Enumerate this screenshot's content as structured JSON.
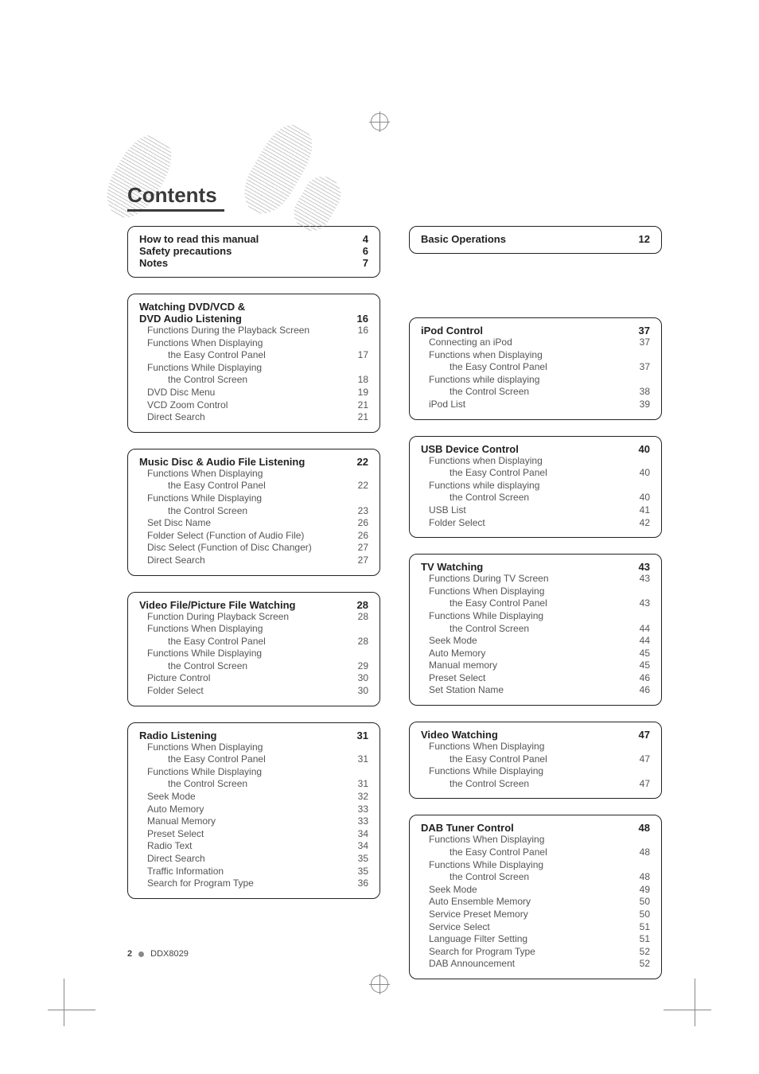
{
  "title": "Contents",
  "footer": {
    "page_number": "2",
    "model": "DDX8029"
  },
  "left_column": [
    {
      "rows": [
        {
          "type": "title",
          "label": "How to read this manual",
          "page": "4"
        },
        {
          "type": "title",
          "label": "Safety precautions",
          "page": "6"
        },
        {
          "type": "title",
          "label": "Notes",
          "page": "7"
        }
      ]
    },
    {
      "rows": [
        {
          "type": "title",
          "label": "Watching DVD/VCD &",
          "page": ""
        },
        {
          "type": "subheading",
          "label": "DVD Audio Listening",
          "page": "16"
        },
        {
          "type": "item",
          "label": "Functions During the Playback Screen",
          "page": "16"
        },
        {
          "type": "item",
          "label": "Functions When Displaying",
          "page": ""
        },
        {
          "type": "item2",
          "label": "the Easy Control Panel",
          "page": "17"
        },
        {
          "type": "item",
          "label": "Functions While Displaying",
          "page": ""
        },
        {
          "type": "item2",
          "label": "the Control Screen",
          "page": "18"
        },
        {
          "type": "item",
          "label": "DVD Disc Menu",
          "page": "19"
        },
        {
          "type": "item",
          "label": "VCD Zoom Control",
          "page": "21"
        },
        {
          "type": "item",
          "label": "Direct Search",
          "page": "21"
        }
      ]
    },
    {
      "rows": [
        {
          "type": "title",
          "label": "Music Disc & Audio File Listening",
          "page": "22"
        },
        {
          "type": "item",
          "label": "Functions When Displaying",
          "page": ""
        },
        {
          "type": "item2",
          "label": "the Easy Control Panel",
          "page": "22"
        },
        {
          "type": "item",
          "label": "Functions While Displaying",
          "page": ""
        },
        {
          "type": "item2",
          "label": "the Control Screen",
          "page": "23"
        },
        {
          "type": "item",
          "label": "Set Disc Name",
          "page": "26"
        },
        {
          "type": "item",
          "label": "Folder Select (Function of Audio File)",
          "page": "26"
        },
        {
          "type": "item",
          "label": "Disc Select (Function of Disc Changer)",
          "page": "27"
        },
        {
          "type": "item",
          "label": "Direct Search",
          "page": "27"
        }
      ]
    },
    {
      "rows": [
        {
          "type": "title",
          "label": "Video File/Picture File Watching",
          "page": "28"
        },
        {
          "type": "item",
          "label": "Function During Playback Screen",
          "page": "28"
        },
        {
          "type": "item",
          "label": "Functions When Displaying",
          "page": ""
        },
        {
          "type": "item2",
          "label": "the Easy Control Panel",
          "page": "28"
        },
        {
          "type": "item",
          "label": "Functions While Displaying",
          "page": ""
        },
        {
          "type": "item2",
          "label": "the Control Screen",
          "page": "29"
        },
        {
          "type": "item",
          "label": "Picture Control",
          "page": "30"
        },
        {
          "type": "item",
          "label": "Folder Select",
          "page": "30"
        }
      ]
    },
    {
      "rows": [
        {
          "type": "title",
          "label": "Radio Listening",
          "page": "31"
        },
        {
          "type": "item",
          "label": "Functions When Displaying",
          "page": ""
        },
        {
          "type": "item2",
          "label": "the Easy Control Panel",
          "page": "31"
        },
        {
          "type": "item",
          "label": "Functions While Displaying",
          "page": ""
        },
        {
          "type": "item2",
          "label": "the Control Screen",
          "page": "31"
        },
        {
          "type": "item",
          "label": "Seek Mode",
          "page": "32"
        },
        {
          "type": "item",
          "label": "Auto Memory",
          "page": "33"
        },
        {
          "type": "item",
          "label": "Manual Memory",
          "page": "33"
        },
        {
          "type": "item",
          "label": "Preset Select",
          "page": "34"
        },
        {
          "type": "item",
          "label": "Radio Text",
          "page": "34"
        },
        {
          "type": "item",
          "label": "Direct Search",
          "page": "35"
        },
        {
          "type": "item",
          "label": "Traffic Information",
          "page": "35"
        },
        {
          "type": "item",
          "label": "Search for Program Type",
          "page": "36"
        }
      ]
    }
  ],
  "right_column": [
    {
      "rows": [
        {
          "type": "title",
          "label": "Basic Operations",
          "page": "12"
        }
      ]
    },
    {
      "spacer": true
    },
    {
      "rows": [
        {
          "type": "title",
          "label": "iPod Control",
          "page": "37"
        },
        {
          "type": "item",
          "label": "Connecting an iPod",
          "page": "37"
        },
        {
          "type": "item",
          "label": "Functions when Displaying",
          "page": ""
        },
        {
          "type": "item2",
          "label": "the Easy Control Panel",
          "page": "37"
        },
        {
          "type": "item",
          "label": "Functions while displaying",
          "page": ""
        },
        {
          "type": "item2",
          "label": "the Control Screen",
          "page": "38"
        },
        {
          "type": "item",
          "label": "iPod List",
          "page": "39"
        }
      ]
    },
    {
      "rows": [
        {
          "type": "title",
          "label": "USB Device Control",
          "page": "40"
        },
        {
          "type": "item",
          "label": "Functions when Displaying",
          "page": ""
        },
        {
          "type": "item2",
          "label": "the Easy Control Panel",
          "page": "40"
        },
        {
          "type": "item",
          "label": "Functions while displaying",
          "page": ""
        },
        {
          "type": "item2",
          "label": "the Control Screen",
          "page": "40"
        },
        {
          "type": "item",
          "label": "USB List",
          "page": "41"
        },
        {
          "type": "item",
          "label": "Folder Select",
          "page": "42"
        }
      ]
    },
    {
      "rows": [
        {
          "type": "title",
          "label": "TV Watching",
          "page": "43"
        },
        {
          "type": "item",
          "label": "Functions During TV Screen",
          "page": "43"
        },
        {
          "type": "item",
          "label": "Functions When Displaying",
          "page": ""
        },
        {
          "type": "item2",
          "label": "the Easy Control Panel",
          "page": "43"
        },
        {
          "type": "item",
          "label": "Functions While Displaying",
          "page": ""
        },
        {
          "type": "item2",
          "label": "the Control Screen",
          "page": "44"
        },
        {
          "type": "item",
          "label": "Seek Mode",
          "page": "44"
        },
        {
          "type": "item",
          "label": "Auto Memory",
          "page": "45"
        },
        {
          "type": "item",
          "label": "Manual memory",
          "page": "45"
        },
        {
          "type": "item",
          "label": "Preset Select",
          "page": "46"
        },
        {
          "type": "item",
          "label": "Set Station Name",
          "page": "46"
        }
      ]
    },
    {
      "rows": [
        {
          "type": "title",
          "label": "Video Watching",
          "page": "47"
        },
        {
          "type": "item",
          "label": "Functions When Displaying",
          "page": ""
        },
        {
          "type": "item2",
          "label": "the Easy Control Panel",
          "page": "47"
        },
        {
          "type": "item",
          "label": "Functions While Displaying",
          "page": ""
        },
        {
          "type": "item2",
          "label": "the Control Screen",
          "page": "47"
        }
      ]
    },
    {
      "rows": [
        {
          "type": "title",
          "label": "DAB Tuner Control",
          "page": "48"
        },
        {
          "type": "item",
          "label": "Functions When Displaying",
          "page": ""
        },
        {
          "type": "item2",
          "label": "the Easy Control Panel",
          "page": "48"
        },
        {
          "type": "item",
          "label": "Functions While Displaying",
          "page": ""
        },
        {
          "type": "item2",
          "label": "the Control Screen",
          "page": "48"
        },
        {
          "type": "item",
          "label": "Seek Mode",
          "page": "49"
        },
        {
          "type": "item",
          "label": "Auto Ensemble Memory",
          "page": "50"
        },
        {
          "type": "item",
          "label": "Service Preset Memory",
          "page": "50"
        },
        {
          "type": "item",
          "label": "Service Select",
          "page": "51"
        },
        {
          "type": "item",
          "label": "Language Filter Setting",
          "page": "51"
        },
        {
          "type": "item",
          "label": "Search for Program Type",
          "page": "52"
        },
        {
          "type": "item",
          "label": "DAB Announcement",
          "page": "52"
        }
      ]
    }
  ]
}
